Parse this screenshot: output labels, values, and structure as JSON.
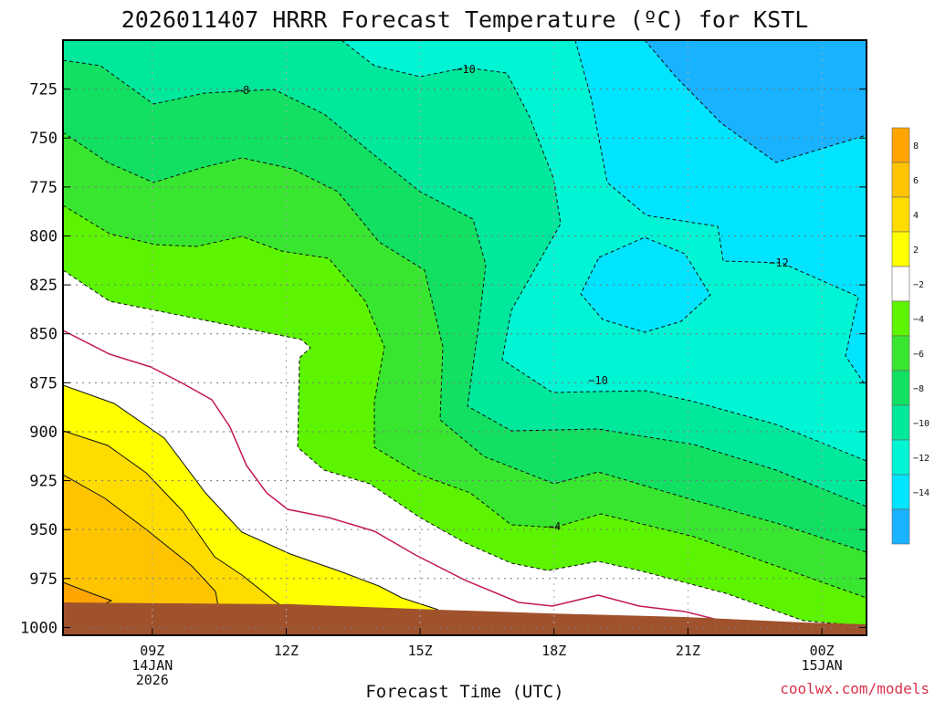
{
  "chart_data": {
    "type": "filled-contour",
    "title": "2026011407 HRRR Forecast Temperature (ºC) for KSTL",
    "xlabel": "Forecast Time (UTC)",
    "ylabel": "",
    "credit": "coolwx.com/models",
    "x_ticks": [
      {
        "hour": 9,
        "lines": [
          "09Z",
          "14JAN",
          "2026"
        ]
      },
      {
        "hour": 12,
        "lines": [
          "12Z"
        ]
      },
      {
        "hour": 15,
        "lines": [
          "15Z"
        ]
      },
      {
        "hour": 18,
        "lines": [
          "18Z"
        ]
      },
      {
        "hour": 21,
        "lines": [
          "21Z"
        ]
      },
      {
        "hour": 24,
        "lines": [
          "00Z",
          "15JAN"
        ]
      }
    ],
    "xlim_hours": [
      7,
      25
    ],
    "y_ticks": [
      725,
      750,
      775,
      800,
      825,
      850,
      875,
      900,
      925,
      950,
      975,
      1000
    ],
    "ylim_hpa": [
      700,
      1004
    ],
    "color_levels": [
      -16,
      -14,
      -12,
      -10,
      -8,
      -6,
      -4,
      -2,
      2,
      4,
      6,
      8,
      10
    ],
    "colorbar_labels": [
      "8",
      "6",
      "4",
      "2",
      "−2",
      "−4",
      "−6",
      "−8",
      "−10",
      "−12",
      "−14"
    ],
    "colors": {
      "lt14": "#19b2ff",
      "m14": "#00e4ff",
      "m12": "#00f5d5",
      "m10": "#00e89c",
      "m8": "#11e062",
      "m6": "#38e630",
      "m4": "#5cf400",
      "m2": "#ffffff",
      "p2": "#ffff00",
      "p4": "#ffdc00",
      "p6": "#ffc400",
      "p8": "#ffa400",
      "ground": "#a0522d",
      "zero_line": "#c2185b"
    },
    "contour_labels": [
      "−10",
      "−8",
      "−12",
      "−10",
      "−4"
    ]
  }
}
